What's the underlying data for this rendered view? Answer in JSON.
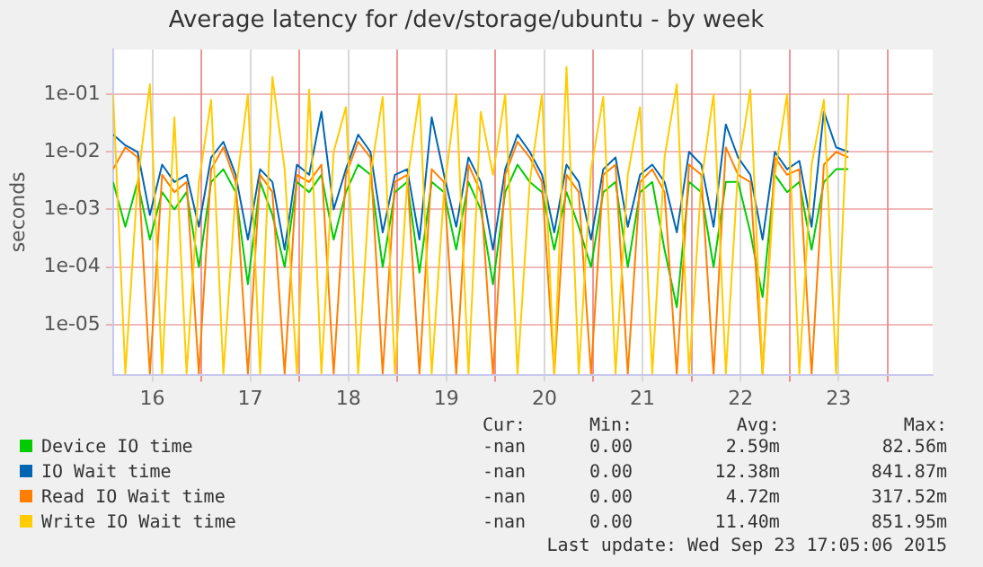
{
  "chart_data": {
    "type": "line",
    "title": "Average latency for /dev/storage/ubuntu - by week",
    "ylabel": "seconds",
    "log": "y",
    "grid": true,
    "legend": "bottom",
    "marker": "none",
    "line_style": "solid",
    "xlim": [
      15.6,
      23.96
    ],
    "ylim": [
      1.35e-06,
      0.6
    ],
    "xticks": [
      16,
      17,
      18,
      19,
      20,
      21,
      22,
      23,
      {
        "value": 16.5,
        "label": null
      },
      {
        "value": 17.5,
        "label": null
      },
      {
        "value": 18.5,
        "label": null
      },
      {
        "value": 19.5,
        "label": null
      },
      {
        "value": 20.5,
        "label": null
      },
      {
        "value": 21.5,
        "label": null
      },
      {
        "value": 22.5,
        "label": null
      },
      {
        "value": 23.5,
        "label": null
      }
    ],
    "yticks": [
      {
        "value": 1e-05,
        "label": "1e-05"
      },
      {
        "value": 0.0001,
        "label": "1e-04"
      },
      {
        "value": 0.001,
        "label": "1e-03"
      },
      {
        "value": 0.01,
        "label": "1e-02"
      },
      {
        "value": 0.1,
        "label": "1e-01"
      }
    ],
    "x": [
      15.6,
      15.725,
      15.85,
      15.975,
      16.1,
      16.225,
      16.35,
      16.475,
      16.6,
      16.725,
      16.85,
      16.975,
      17.1,
      17.225,
      17.35,
      17.475,
      17.6,
      17.725,
      17.85,
      17.975,
      18.1,
      18.225,
      18.35,
      18.475,
      18.6,
      18.725,
      18.85,
      18.975,
      19.1,
      19.225,
      19.35,
      19.475,
      19.6,
      19.725,
      19.85,
      19.975,
      20.1,
      20.225,
      20.35,
      20.475,
      20.6,
      20.725,
      20.85,
      20.975,
      21.1,
      21.225,
      21.35,
      21.475,
      21.6,
      21.725,
      21.85,
      21.975,
      22.1,
      22.225,
      22.35,
      22.475,
      22.6,
      22.725,
      22.85,
      22.975,
      23.1
    ],
    "series": [
      {
        "name": "Device IO time",
        "color": "#00cc00",
        "values": [
          0.003,
          0.0005,
          0.003,
          0.0003,
          0.002,
          0.001,
          0.002,
          0.0001,
          0.003,
          0.005,
          0.002,
          5e-05,
          0.003,
          0.0008,
          0.0001,
          0.003,
          0.002,
          0.004,
          0.0003,
          0.002,
          0.006,
          0.004,
          0.0001,
          0.002,
          0.003,
          8e-05,
          0.003,
          0.002,
          0.0002,
          0.003,
          0.001,
          5e-05,
          0.002,
          0.006,
          0.003,
          0.002,
          0.0002,
          0.002,
          0.0005,
          0.0001,
          0.002,
          0.003,
          0.0001,
          0.002,
          0.003,
          0.0002,
          2e-05,
          0.003,
          0.002,
          0.0001,
          0.003,
          0.003,
          0.0004,
          3e-05,
          0.004,
          0.002,
          0.003,
          0.0002,
          0.003,
          0.005,
          0.005
        ]
      },
      {
        "name": "IO Wait time",
        "color": "#0066b3",
        "values": [
          0.02,
          0.013,
          0.01,
          0.0008,
          0.006,
          0.003,
          0.004,
          0.0005,
          0.008,
          0.015,
          0.004,
          0.0003,
          0.005,
          0.003,
          0.0002,
          0.006,
          0.004,
          0.05,
          0.001,
          0.005,
          0.02,
          0.01,
          0.0004,
          0.004,
          0.005,
          0.0003,
          0.04,
          0.004,
          0.0005,
          0.008,
          0.003,
          0.0002,
          0.005,
          0.02,
          0.01,
          0.004,
          0.0004,
          0.006,
          0.003,
          0.0003,
          0.005,
          0.008,
          0.0005,
          0.004,
          0.006,
          0.003,
          0.0004,
          0.01,
          0.006,
          0.0005,
          0.03,
          0.008,
          0.004,
          0.0003,
          0.01,
          0.005,
          0.007,
          0.0005,
          0.05,
          0.012,
          0.01
        ]
      },
      {
        "name": "Read IO Wait time",
        "color": "#ff8000",
        "values": [
          0.005,
          0.012,
          0.008,
          1.4e-06,
          0.004,
          0.002,
          0.003,
          1.4e-06,
          0.005,
          0.012,
          0.003,
          1.4e-06,
          0.004,
          0.002,
          1.4e-06,
          0.004,
          0.003,
          0.006,
          1.4e-06,
          0.004,
          0.015,
          0.008,
          1.4e-06,
          0.003,
          0.004,
          1.4e-06,
          0.005,
          0.003,
          1.4e-06,
          0.006,
          0.002,
          1.4e-06,
          0.004,
          0.015,
          0.008,
          0.003,
          1.4e-06,
          0.004,
          0.002,
          1.4e-06,
          0.004,
          0.006,
          1.4e-06,
          0.003,
          0.005,
          0.002,
          1.4e-06,
          0.006,
          0.004,
          1.4e-06,
          0.012,
          0.004,
          0.003,
          1.4e-06,
          0.008,
          0.004,
          0.005,
          1.4e-06,
          0.006,
          0.01,
          0.008
        ]
      },
      {
        "name": "Write IO Wait time",
        "color": "#ffcc00",
        "values": [
          0.1,
          1.4e-06,
          0.003,
          0.15,
          1.4e-06,
          0.04,
          1.4e-06,
          0.003,
          0.08,
          1.4e-06,
          0.002,
          0.1,
          1.4e-06,
          0.2,
          0.005,
          1.4e-06,
          0.12,
          1.4e-06,
          0.01,
          0.06,
          1.4e-06,
          0.004,
          0.09,
          1.4e-06,
          0.003,
          0.1,
          1.4e-06,
          0.002,
          0.1,
          1.4e-06,
          0.05,
          0.004,
          0.1,
          1.4e-06,
          0.003,
          0.1,
          1.4e-06,
          0.3,
          1.4e-06,
          0.005,
          0.09,
          1.4e-06,
          0.004,
          0.06,
          1.4e-06,
          0.008,
          0.15,
          1.4e-06,
          0.003,
          0.1,
          1.4e-06,
          0.005,
          0.12,
          1.4e-06,
          0.004,
          0.1,
          1.4e-06,
          0.006,
          0.08,
          1.4e-06,
          0.1
        ]
      }
    ],
    "annotations": [
      "Cur:",
      "Min:",
      "Avg:",
      "Max:",
      "-nan",
      "0.00",
      "2.59m",
      "82.56m",
      "-nan",
      "0.00",
      "12.38m",
      "841.87m",
      "-nan",
      "0.00",
      "4.72m",
      "317.52m",
      "-nan",
      "0.00",
      "11.40m",
      "851.95m",
      "Last update: Wed Sep 23 17:05:06 2015"
    ]
  }
}
